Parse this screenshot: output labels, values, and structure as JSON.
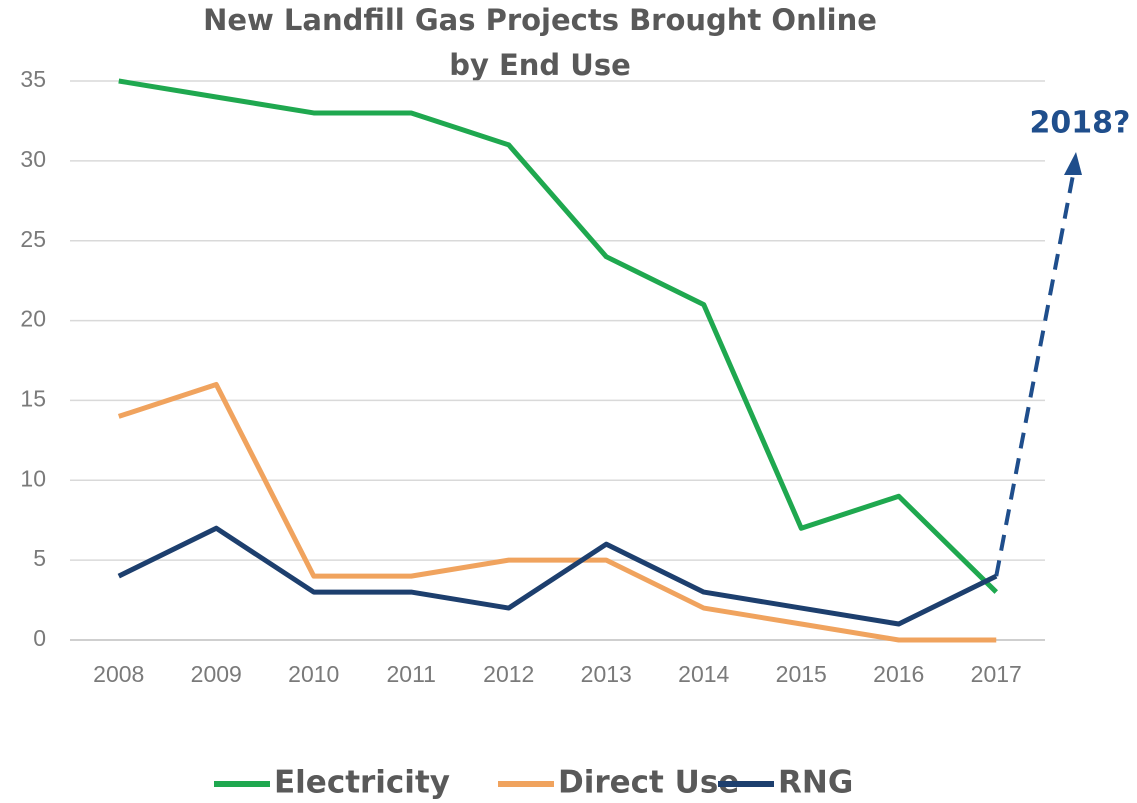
{
  "chart_data": {
    "type": "line",
    "title": [
      "New Landfill Gas Projects Brought Online",
      "by End Use"
    ],
    "categories": [
      "2008",
      "2009",
      "2010",
      "2011",
      "2012",
      "2013",
      "2014",
      "2015",
      "2016",
      "2017"
    ],
    "series": [
      {
        "name": "Electricity",
        "color": "#1fa84f",
        "values": [
          35,
          34,
          33,
          33,
          31,
          24,
          21,
          7,
          9,
          3
        ]
      },
      {
        "name": "Direct Use",
        "color": "#f0a35e",
        "values": [
          14,
          16,
          4,
          4,
          5,
          5,
          2,
          1,
          0,
          0
        ]
      },
      {
        "name": "RNG",
        "color": "#1d3f6e",
        "values": [
          4,
          7,
          3,
          3,
          2,
          6,
          3,
          2,
          1,
          4
        ]
      }
    ],
    "annotation": "2018?",
    "ylim": [
      0,
      35
    ],
    "yticks": [
      0,
      5,
      10,
      15,
      20,
      25,
      30,
      35
    ],
    "grid": true,
    "legend": "bottom"
  }
}
